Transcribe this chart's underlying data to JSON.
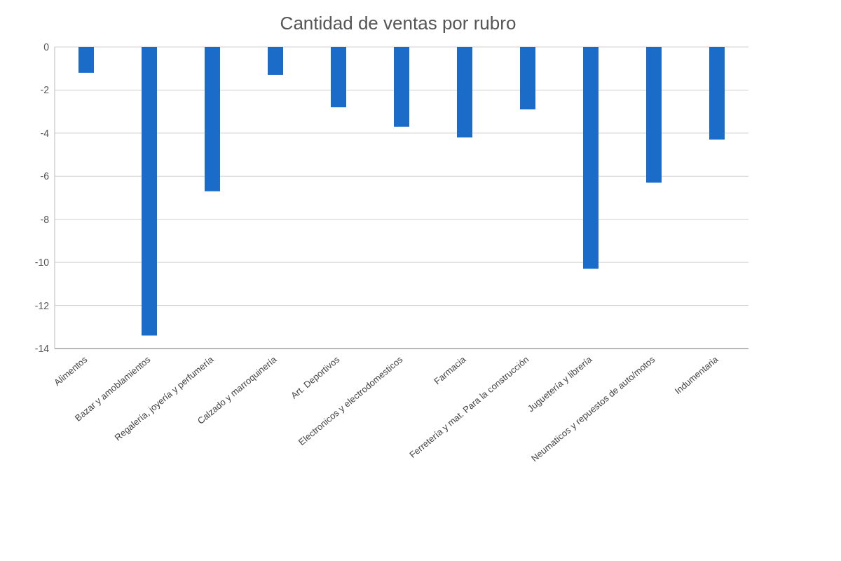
{
  "chart_data": {
    "type": "bar",
    "title": "Cantidad de ventas por rubro",
    "categories": [
      "Alimentos",
      "Bazar y amoblamientos",
      "Regalería, joyería y perfumería",
      "Calzado y marroquinería",
      "Art. Deportivos",
      "Electronicos y electrodomesticos",
      "Farmacia",
      "Ferretería y mat. Para la construcción",
      "Juguetería y librería",
      "Neumaticos y repuestos de auto/motos",
      "Indumentaria"
    ],
    "values": [
      -1.2,
      -13.4,
      -6.7,
      -1.3,
      -2.8,
      -3.7,
      -4.2,
      -2.9,
      -10.3,
      -6.3,
      -4.3
    ],
    "color": "#1a6cc8",
    "ylim": [
      -14,
      0
    ],
    "yticks": [
      -14,
      -12,
      -10,
      -8,
      -6,
      -4,
      -2,
      0
    ],
    "grid": "y"
  }
}
